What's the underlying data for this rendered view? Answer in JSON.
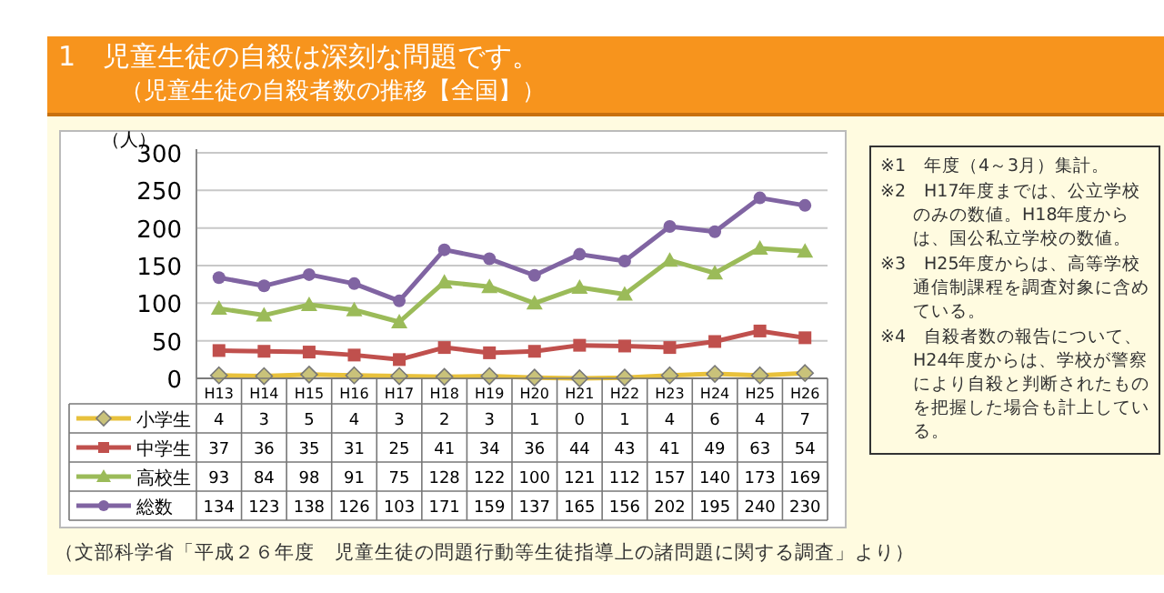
{
  "chart_data": {
    "type": "line",
    "title": "1　児童生徒の自殺は深刻な問題です。",
    "subtitle": "（児童生徒の自殺者数の推移【全国】）",
    "ylabel": "（人）",
    "categories": [
      "H13",
      "H14",
      "H15",
      "H16",
      "H17",
      "H18",
      "H19",
      "H20",
      "H21",
      "H22",
      "H23",
      "H24",
      "H25",
      "H26"
    ],
    "series": [
      {
        "name": "小学生",
        "color": "#e8c13c",
        "marker": "diamond",
        "values": [
          4,
          3,
          5,
          4,
          3,
          2,
          3,
          1,
          0,
          1,
          4,
          6,
          4,
          7
        ]
      },
      {
        "name": "中学生",
        "color": "#c0504d",
        "marker": "square",
        "values": [
          37,
          36,
          35,
          31,
          25,
          41,
          34,
          36,
          44,
          43,
          41,
          49,
          63,
          54
        ]
      },
      {
        "name": "高校生",
        "color": "#9bbb59",
        "marker": "triangle",
        "values": [
          93,
          84,
          98,
          91,
          75,
          128,
          122,
          100,
          121,
          112,
          157,
          140,
          173,
          169
        ]
      },
      {
        "name": "総数",
        "color": "#8064a2",
        "marker": "circle",
        "values": [
          134,
          123,
          138,
          126,
          103,
          171,
          159,
          137,
          165,
          156,
          202,
          195,
          240,
          230
        ]
      }
    ],
    "ylim": [
      0,
      300
    ],
    "yticks": [
      0,
      50,
      100,
      150,
      200,
      250,
      300
    ],
    "grid": "y",
    "legend": "bottom",
    "data_labels": true,
    "annotations": [
      "※1　年度（4～3月）集計。",
      "※2　H17年度までは、公立学校のみの数値。H18年度からは、国公私立学校の数値。",
      "※3　H25年度からは、高等学校通信制課程を調査対象に含めている。",
      "※4　自殺者数の報告について、H24年度からは、学校が警察により自殺と判断されたものを把握した場合も計上している。",
      "（文部科学省「平成２６年度　児童生徒の問題行動等生徒指導上の諸問題に関する調査」より）"
    ]
  }
}
